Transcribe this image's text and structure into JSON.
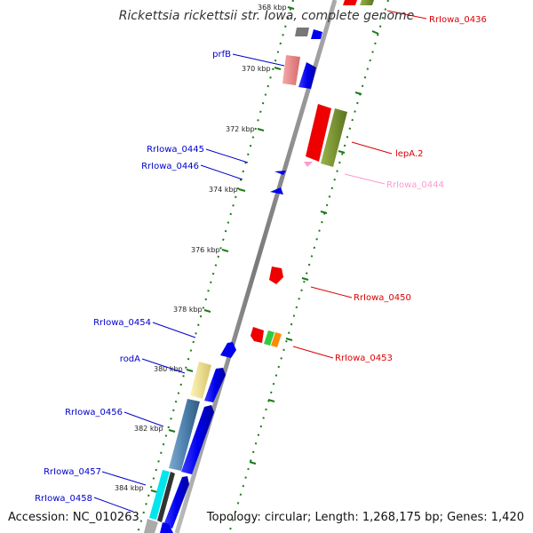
{
  "title": "Rickettsia rickettsii str. Iowa, complete genome",
  "footer": {
    "accession": "Accession: NC_010263",
    "topology": "Topology: circular; Length: 1,268,175 bp; Genes: 1,420"
  },
  "colors": {
    "left_label": "#0000cc",
    "right_label": "#dd0000",
    "right_label_light": "#ff99cc",
    "tick_dots": "#1a7a1a",
    "backbone": "#888888"
  },
  "scale_ticks": [
    "368 kbp",
    "370 kbp",
    "372 kbp",
    "374 kbp",
    "376 kbp",
    "378 kbp",
    "380 kbp",
    "382 kbp",
    "384 kbp"
  ],
  "left_labels": [
    "prfB",
    "RrIowa_0445",
    "RrIowa_0446",
    "RrIowa_0454",
    "rodA",
    "RrIowa_0456",
    "RrIowa_0457",
    "RrIowa_0458"
  ],
  "right_labels": [
    "RrIowa_0436",
    "lepA.2",
    "RrIowa_0444",
    "RrIowa_0450",
    "RrIowa_0453"
  ]
}
